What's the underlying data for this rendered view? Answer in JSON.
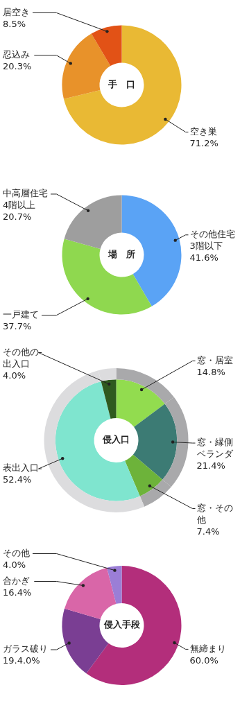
{
  "chart_data": [
    {
      "type": "donut",
      "title": "手　口",
      "categories": [
        "空き巣",
        "忍込み",
        "居空き"
      ],
      "values": [
        71.2,
        20.3,
        8.5
      ],
      "colors": [
        "#e9b934",
        "#e8922a",
        "#e25216"
      ],
      "value_labels": [
        "71.2%",
        "20.3%",
        "8.5%"
      ]
    },
    {
      "type": "donut",
      "title": "場　所",
      "categories": [
        "その他住宅3階以下",
        "一戸建て",
        "中高層住宅4階以上"
      ],
      "values": [
        41.6,
        37.7,
        20.7
      ],
      "colors": [
        "#5aa3f5",
        "#8fd84f",
        "#9e9e9e"
      ],
      "value_labels": [
        "41.6%",
        "37.7%",
        "20.7%"
      ]
    },
    {
      "type": "donut",
      "title": "侵入口",
      "categories": [
        "窓・居室",
        "窓・縁側ベランダ",
        "窓・その他",
        "表出入口",
        "その他の出入口"
      ],
      "series": [
        {
          "values": [
            14.8,
            21.4,
            7.4,
            52.4,
            4.0
          ],
          "colors": [
            "#a9a9ab",
            "#a9a9ab",
            "#a9a9ab",
            "#dcdcde",
            "#dcdcde"
          ]
        },
        {
          "values": [
            14.8,
            21.4,
            7.4,
            52.4,
            4.0
          ],
          "colors": [
            "#92dc4f",
            "#3c7b74",
            "#6db33a",
            "#7fe5cf",
            "#2f5a1f"
          ]
        }
      ],
      "value_labels": [
        "14.8%",
        "21.4%",
        "7.4%",
        "52.4%",
        "4.0%"
      ]
    },
    {
      "type": "donut",
      "title": "侵入手段",
      "categories": [
        "無締まり",
        "ガラス破り",
        "合かぎ",
        "その他"
      ],
      "values": [
        60.0,
        19.4,
        16.4,
        4.0
      ],
      "colors": [
        "#b32e7b",
        "#7a3e93",
        "#d966a8",
        "#9b7ed6"
      ],
      "value_labels": [
        "60.0%",
        "19.4.0%",
        "16.4%",
        "4.0%"
      ]
    }
  ]
}
